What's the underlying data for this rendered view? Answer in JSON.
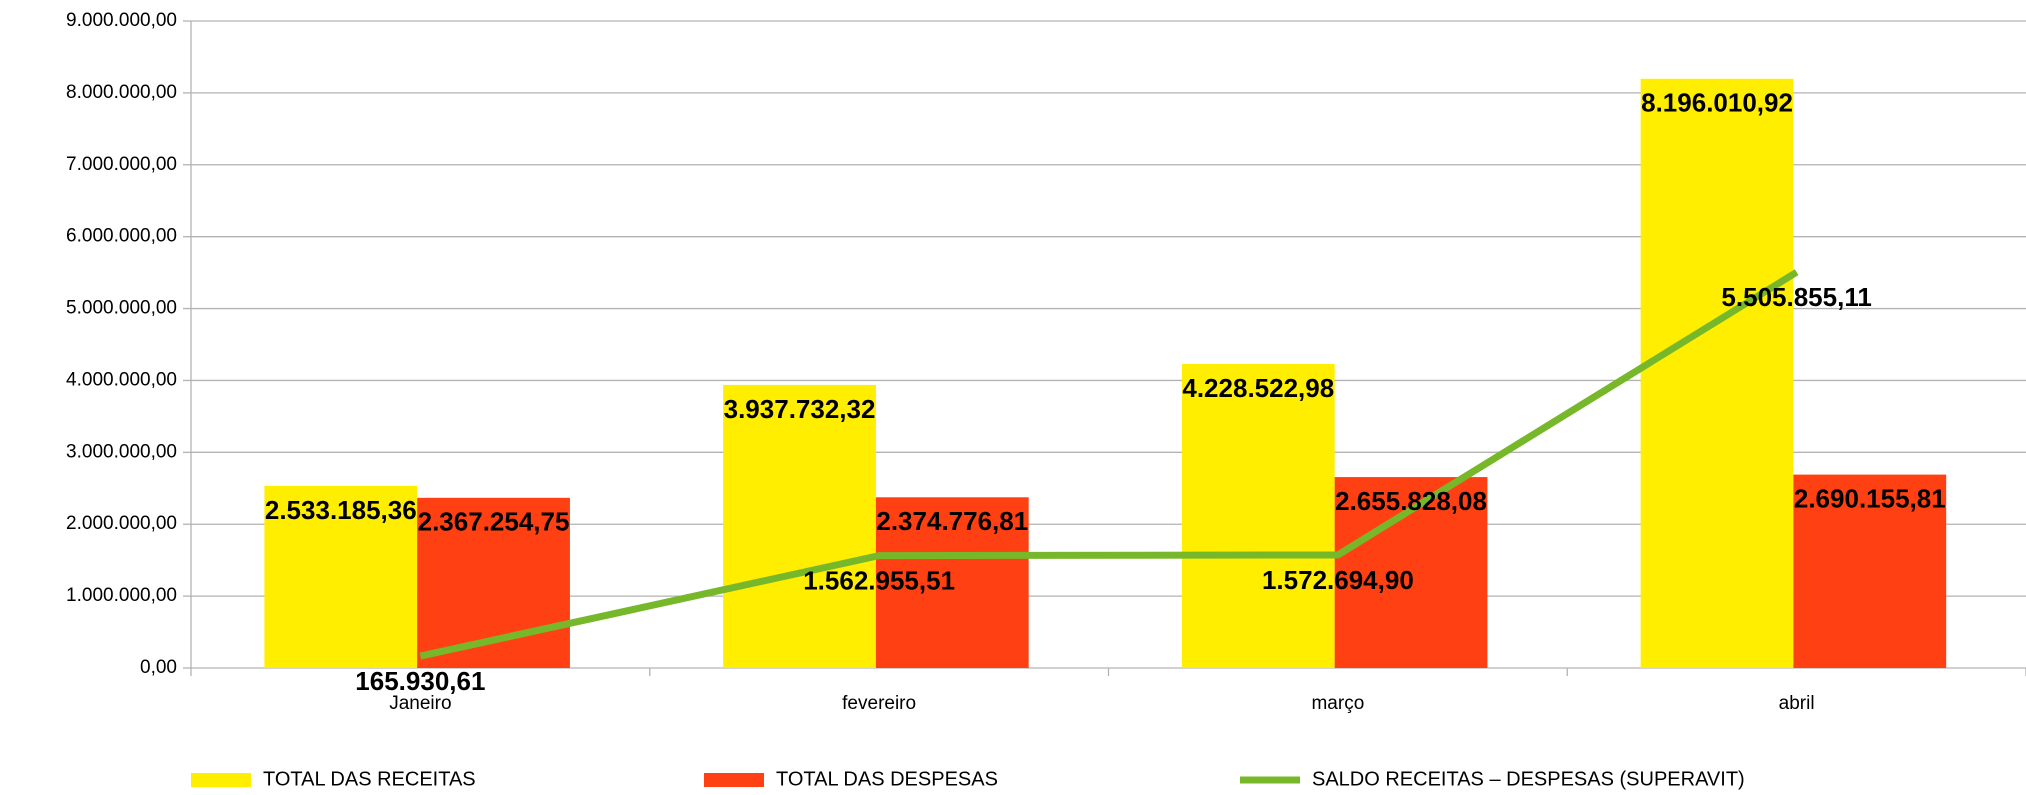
{
  "chart_data": {
    "type": "bar",
    "categories": [
      "Janeiro",
      "fevereiro",
      "março",
      "abril"
    ],
    "series": [
      {
        "name": "TOTAL DAS RECEITAS",
        "color": "#ffee00",
        "values": [
          2533185.36,
          3937732.32,
          4228522.98,
          8196010.92
        ],
        "value_labels": [
          "2.533.185,36",
          "3.937.732,32",
          "4.228.522,98",
          "8.196.010,92"
        ]
      },
      {
        "name": "TOTAL DAS DESPESAS",
        "color": "#ff4013",
        "values": [
          2367254.75,
          2374776.81,
          2655828.08,
          2690155.81
        ],
        "value_labels": [
          "2.367.254,75",
          "2.374.776,81",
          "2.655.828,08",
          "2.690.155,81"
        ]
      },
      {
        "name": "SALDO RECEITAS – DESPESAS (SUPERAVIT)",
        "type": "line",
        "color": "#77b82a",
        "values": [
          165930.61,
          1562955.51,
          1572694.9,
          5505855.11
        ],
        "value_labels": [
          "165.930,61",
          "1.562.955,51",
          "1.572.694,90",
          "5.505.855,11"
        ]
      }
    ],
    "ylim": [
      0,
      9000000
    ],
    "yticks": [
      {
        "value": 0,
        "label": "0,00"
      },
      {
        "value": 1000000,
        "label": "1.000.000,00"
      },
      {
        "value": 2000000,
        "label": "2.000.000,00"
      },
      {
        "value": 3000000,
        "label": "3.000.000,00"
      },
      {
        "value": 4000000,
        "label": "4.000.000,00"
      },
      {
        "value": 5000000,
        "label": "5.000.000,00"
      },
      {
        "value": 6000000,
        "label": "6.000.000,00"
      },
      {
        "value": 7000000,
        "label": "7.000.000,00"
      },
      {
        "value": 8000000,
        "label": "8.000.000,00"
      },
      {
        "value": 9000000,
        "label": "9.000.000,00"
      }
    ],
    "grid": true,
    "legend": "bottom"
  }
}
